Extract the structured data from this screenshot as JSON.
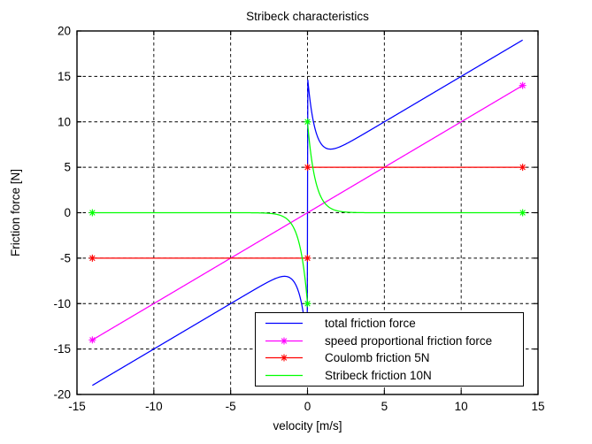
{
  "chart_data": {
    "type": "line",
    "title": "Stribeck characteristics",
    "xlabel": "velocity [m/s]",
    "ylabel": "Friction force [N]",
    "xlim": [
      -15,
      15
    ],
    "ylim": [
      -20,
      20
    ],
    "xticks": [
      -15,
      -10,
      -5,
      0,
      5,
      10,
      15
    ],
    "yticks": [
      -20,
      -15,
      -10,
      -5,
      0,
      5,
      10,
      15,
      20
    ],
    "grid": true,
    "grid_style": "dashed",
    "grid_color": "#000000",
    "axis_color": "#000000",
    "background": "#ffffff",
    "legend_position": "lower-right-inside",
    "velocity_range": [
      -14,
      14
    ],
    "series": [
      {
        "name": "total friction force",
        "color": "#0000ff",
        "model": "viscous+coulomb+stribeck",
        "viscous_slope": 1,
        "coulomb_N": 5,
        "stribeck_N": 10,
        "stribeck_decay_vs": 0.5,
        "discontinuity_at_zero": true,
        "legend_marker": false,
        "marker_points": [],
        "key_values": {
          "at_v_minus14": -19,
          "hump_negative": [
            -1.5,
            -7
          ],
          "jump_at_zero": [
            -14.7,
            14.7
          ],
          "dip_positive": [
            1.5,
            7
          ],
          "at_v_14": 19
        }
      },
      {
        "name": "speed proportional friction force",
        "color": "#ff00ff",
        "model": "viscous",
        "viscous_slope": 1,
        "discontinuity_at_zero": false,
        "legend_marker": true,
        "marker_points": [
          [
            -14,
            -14
          ],
          [
            14,
            14
          ]
        ],
        "key_values": {
          "at_v_minus14": -14,
          "at_v_0": 0,
          "at_v_14": 14
        }
      },
      {
        "name": "Coulomb friction 5N",
        "color": "#ff0000",
        "model": "coulomb",
        "coulomb_N": 5,
        "discontinuity_at_zero": true,
        "legend_marker": true,
        "marker_points": [
          [
            -14,
            -5
          ],
          [
            0,
            -5
          ],
          [
            0,
            5
          ],
          [
            14,
            5
          ]
        ],
        "key_values": {
          "negative_branch": -5,
          "positive_branch": 5
        }
      },
      {
        "name": "Stribeck friction 10N",
        "color": "#00ff00",
        "model": "stribeck",
        "stribeck_N": 10,
        "stribeck_decay_vs": 0.5,
        "discontinuity_at_zero": true,
        "legend_marker": false,
        "marker_points": [
          [
            -14,
            0
          ],
          [
            0,
            -10
          ],
          [
            0,
            10
          ],
          [
            14,
            0
          ]
        ],
        "key_values": {
          "at_v_0minus": -10,
          "at_v_0plus": 10,
          "at_large_speed": 0
        }
      }
    ]
  }
}
